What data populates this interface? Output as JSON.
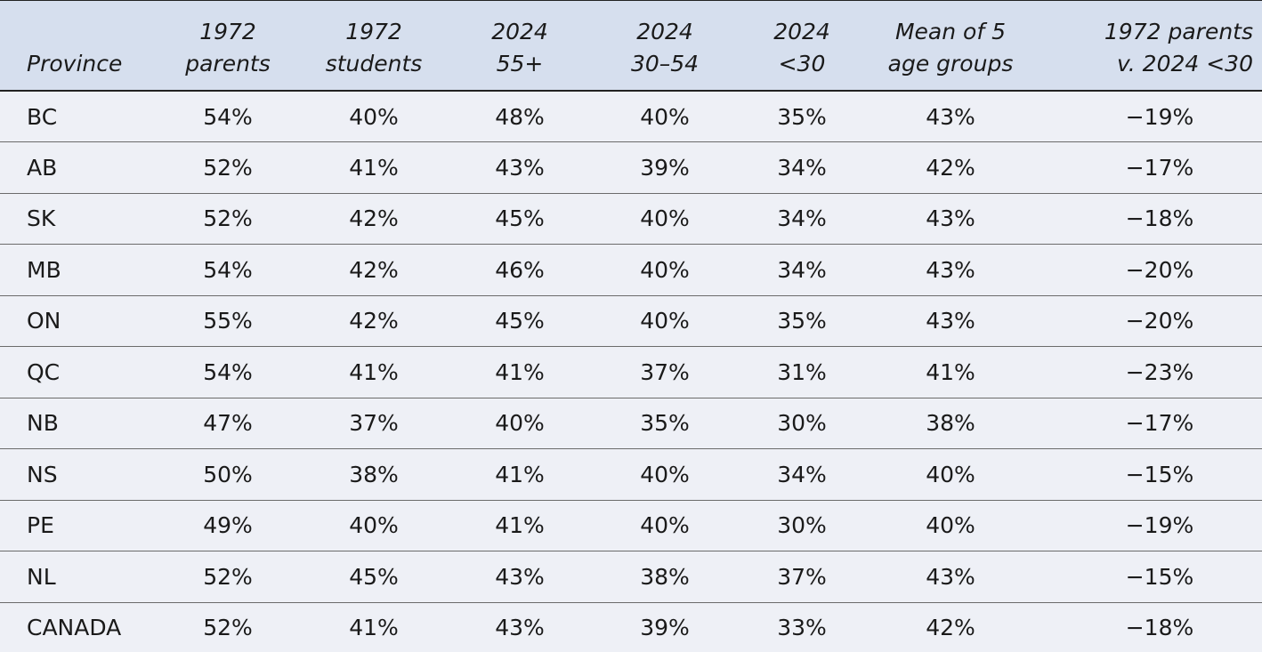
{
  "chart_data": {
    "type": "table",
    "columns": [
      [
        "Province"
      ],
      [
        "1972",
        "parents"
      ],
      [
        "1972",
        "students"
      ],
      [
        "2024",
        "55+"
      ],
      [
        "2024",
        "30–54"
      ],
      [
        "2024",
        "<30"
      ],
      [
        "Mean of 5",
        "age groups"
      ],
      [
        "1972 parents",
        "v. 2024 <30"
      ]
    ],
    "rows": [
      [
        "BC",
        "54%",
        "40%",
        "48%",
        "40%",
        "35%",
        "43%",
        "−19%"
      ],
      [
        "AB",
        "52%",
        "41%",
        "43%",
        "39%",
        "34%",
        "42%",
        "−17%"
      ],
      [
        "SK",
        "52%",
        "42%",
        "45%",
        "40%",
        "34%",
        "43%",
        "−18%"
      ],
      [
        "MB",
        "54%",
        "42%",
        "46%",
        "40%",
        "34%",
        "43%",
        "−20%"
      ],
      [
        "ON",
        "55%",
        "42%",
        "45%",
        "40%",
        "35%",
        "43%",
        "−20%"
      ],
      [
        "QC",
        "54%",
        "41%",
        "41%",
        "37%",
        "31%",
        "41%",
        "−23%"
      ],
      [
        "NB",
        "47%",
        "37%",
        "40%",
        "35%",
        "30%",
        "38%",
        "−17%"
      ],
      [
        "NS",
        "50%",
        "38%",
        "41%",
        "40%",
        "34%",
        "40%",
        "−15%"
      ],
      [
        "PE",
        "49%",
        "40%",
        "41%",
        "40%",
        "30%",
        "40%",
        "−19%"
      ],
      [
        "NL",
        "52%",
        "45%",
        "43%",
        "38%",
        "37%",
        "43%",
        "−15%"
      ],
      [
        "CANADA",
        "52%",
        "41%",
        "43%",
        "39%",
        "33%",
        "42%",
        "−18%"
      ]
    ]
  },
  "colors": {
    "header_bg": "#d6dfee",
    "body_bg": "#eef0f6",
    "rule_dark": "#222222",
    "rule_row": "#6b6b6b",
    "text": "#1a1a1a"
  }
}
